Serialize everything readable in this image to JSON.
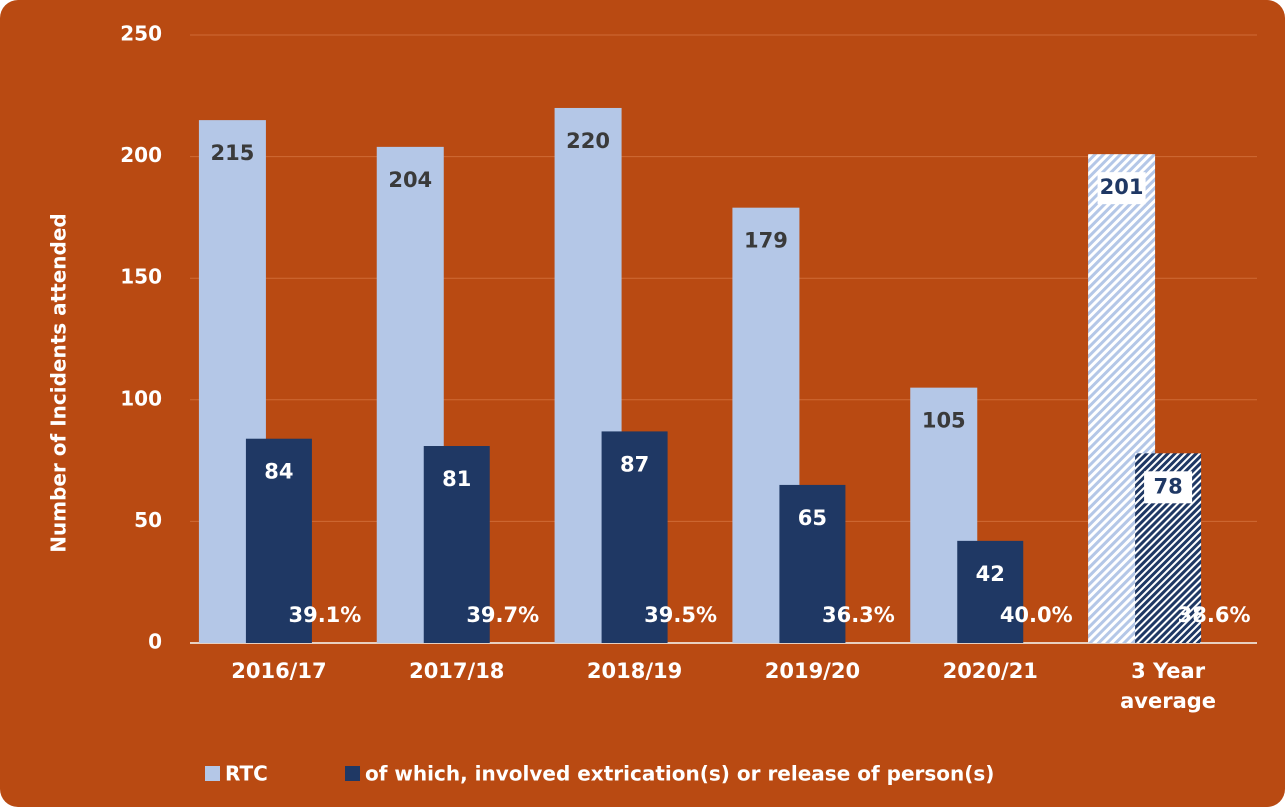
{
  "chart_data": {
    "type": "bar",
    "y_axis_label": "Number of Incidents attended",
    "categories": [
      "2016/17",
      "2017/18",
      "2018/19",
      "2019/20",
      "2020/21",
      "3 Year average"
    ],
    "series": [
      {
        "name": "RTC",
        "color": "#b4c7e7",
        "values": [
          215,
          204,
          220,
          179,
          105,
          201
        ]
      },
      {
        "name": "of which, involved extrication(s) or release of person(s)",
        "color": "#1f3864",
        "values": [
          84,
          81,
          87,
          65,
          42,
          78
        ]
      }
    ],
    "shares": {
      "values": [
        39.1,
        39.7,
        39.5,
        36.3,
        40.0,
        38.6
      ],
      "value_labels": [
        "39.1%",
        "39.7%",
        "39.5%",
        "36.3%",
        "40.0%",
        "38.6%"
      ]
    },
    "hatched": [
      false,
      false,
      false,
      false,
      false,
      true
    ],
    "ylim": [
      0,
      250
    ],
    "yticks": [
      0,
      50,
      100,
      150,
      200,
      250
    ],
    "grid": true,
    "legend": "bottom",
    "background": "#b94a12"
  }
}
